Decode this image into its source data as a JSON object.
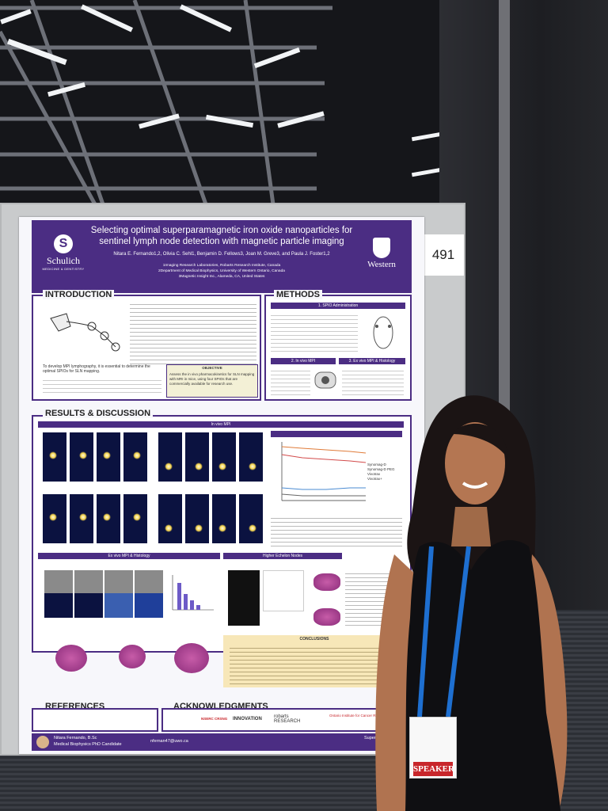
{
  "board_number": "491",
  "poster": {
    "title": "Selecting optimal superparamagnetic iron oxide nanoparticles for sentinel lymph node detection with magnetic particle imaging",
    "authors": "Nitara E. Fernando1,2, Olivia C. Sehl1, Benjamin D. Fellows3, Joan M. Greve3, and Paula J. Foster1,2",
    "affiliations": [
      "1Imaging Research Laboratories, Robarts Research Institute, Canada",
      "2Department of Medical Biophysics, University of Western Ontario, Canada",
      "3Magnetic Insight Inc., Alameda, CA, United States"
    ],
    "logo_left_name": "Schulich",
    "logo_left_sub": "MEDICINE & DENTISTRY",
    "logo_right_name": "Western",
    "sections": {
      "introduction": "INTRODUCTION",
      "methods": "METHODS",
      "results": "RESULTS & DISCUSSION",
      "references": "REFERENCES",
      "acknowledgments": "ACKNOWLEDGMENTS"
    },
    "subheads": {
      "in_vivo_mpi": "In vivo MPI",
      "ex_vivo": "Ex vivo MPI & Histology",
      "higher_echelon": "Higher Echelon Nodes",
      "objective": "OBJECTIVE",
      "conclusions": "CONCLUSIONS",
      "method_1": "1. SPIO Administration",
      "method_2": "2. In vivo MPI",
      "method_3": "3. Ex vivo MPI & Histology"
    },
    "intro_lead": "To develop MPI lymphography, it is essential to determine the optimal SPIOs for SLN mapping.",
    "objective_text": "Assess the in vivo pharmacokinetics for SLN mapping with MRI in mice, using four SPIOs that are commercially available for research use.",
    "legend": [
      "Synomag-D",
      "Synomag-D PEG",
      "Vivotrax",
      "Vivotrax+"
    ],
    "footer_name": "Nitara Fernando, B.Sc",
    "footer_role": "Medical Biophysics PhD Candidate",
    "footer_email": "nfernan47@uwo.ca",
    "footer_supervisor": "Supervisor: Pau",
    "ack_logos": [
      "NSERC CRSNG",
      "INNOVATION",
      "robarts RESEARCH",
      "Ontario Institute for Cancer Research"
    ]
  },
  "badge": {
    "label": "SPEAKER"
  },
  "colors": {
    "poster_purple": "#4b2d83",
    "speaker_red": "#c8262b",
    "lanyard_blue": "#1e6fd0"
  }
}
